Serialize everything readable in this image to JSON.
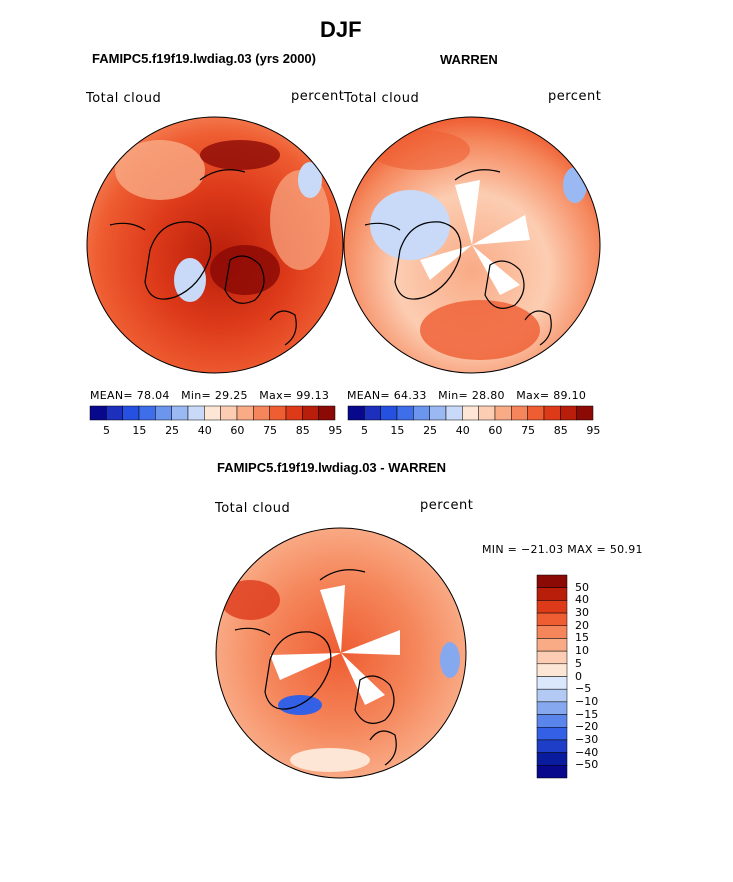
{
  "chart_data": {
    "type": "heatmap",
    "title": "DJF",
    "variable": "Total cloud",
    "units": "percent",
    "panels": [
      {
        "id": "model",
        "subtitle": "FAMIPC5.f19f19.lwdiag.03 (yrs 2000)",
        "variable": "Total cloud",
        "units": "percent",
        "mean_label": "MEAN=",
        "mean": "78.04",
        "min_label": "Min=",
        "min": "29.25",
        "max_label": "Max=",
        "max": "99.13",
        "colorbar_labels": [
          "5",
          "15",
          "25",
          "40",
          "60",
          "75",
          "85",
          "95"
        ]
      },
      {
        "id": "obs",
        "subtitle": "WARREN",
        "variable": "Total cloud",
        "units": "percent",
        "mean_label": "MEAN=",
        "mean": "64.33",
        "min_label": "Min=",
        "min": "28.80",
        "max_label": "Max=",
        "max": "89.10",
        "colorbar_labels": [
          "5",
          "15",
          "25",
          "40",
          "60",
          "75",
          "85",
          "95"
        ]
      },
      {
        "id": "diff",
        "subtitle": "FAMIPC5.f19f19.lwdiag.03 - WARREN",
        "variable": "Total cloud",
        "units": "percent",
        "minmax_label": "MIN = −21.03 MAX =  50.91",
        "colorbar_labels": [
          "50",
          "40",
          "30",
          "20",
          "15",
          "10",
          "5",
          "0",
          "−5",
          "−10",
          "−15",
          "−20",
          "−30",
          "−40",
          "−50"
        ]
      }
    ],
    "abs_colors": [
      "#08088c",
      "#1c2fbd",
      "#2650e0",
      "#3f6eea",
      "#6c96ee",
      "#9ab8f2",
      "#c8daf8",
      "#fde6d6",
      "#fccdb2",
      "#f9ab86",
      "#f5865b",
      "#ef5d32",
      "#dd3a1a",
      "#b81e0a",
      "#8c0a06"
    ],
    "diff_colors": [
      "#8c0a06",
      "#b81e0a",
      "#dd3a1a",
      "#ef5d32",
      "#f5865b",
      "#f9ab86",
      "#fccdb2",
      "#fde6d6",
      "#dbe7fa",
      "#b3cbf4",
      "#86a8ef",
      "#5a85ea",
      "#3360e4",
      "#1e3ec8",
      "#0a1c9e",
      "#08088c"
    ]
  }
}
